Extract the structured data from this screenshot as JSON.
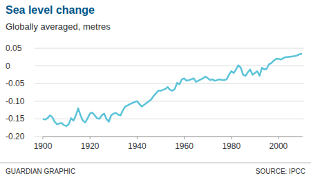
{
  "chart_data": {
    "type": "line",
    "title": "Sea level change",
    "subtitle": "Globally averaged, metres",
    "credit": "GUARDIAN GRAPHIC",
    "source": "SOURCE: IPCC",
    "color": "#5bc3d9",
    "grid": true,
    "x": [
      1900,
      1901,
      1902,
      1903,
      1904,
      1905,
      1906,
      1907,
      1908,
      1909,
      1910,
      1911,
      1912,
      1913,
      1914,
      1915,
      1916,
      1917,
      1918,
      1919,
      1920,
      1921,
      1922,
      1923,
      1924,
      1925,
      1926,
      1927,
      1928,
      1929,
      1930,
      1931,
      1932,
      1933,
      1934,
      1935,
      1936,
      1937,
      1938,
      1939,
      1940,
      1941,
      1942,
      1943,
      1944,
      1945,
      1946,
      1947,
      1948,
      1949,
      1950,
      1951,
      1952,
      1953,
      1954,
      1955,
      1956,
      1957,
      1958,
      1959,
      1960,
      1961,
      1962,
      1963,
      1964,
      1965,
      1966,
      1967,
      1968,
      1969,
      1970,
      1971,
      1972,
      1973,
      1974,
      1975,
      1976,
      1977,
      1978,
      1979,
      1980,
      1981,
      1982,
      1983,
      1984,
      1985,
      1986,
      1987,
      1988,
      1989,
      1990,
      1991,
      1992,
      1993,
      1994,
      1995,
      1996,
      1997,
      1998,
      1999,
      2000,
      2001,
      2002,
      2003,
      2004,
      2005,
      2006,
      2007,
      2008,
      2009,
      2010
    ],
    "values": [
      -0.15,
      -0.152,
      -0.148,
      -0.14,
      -0.145,
      -0.158,
      -0.165,
      -0.163,
      -0.162,
      -0.168,
      -0.17,
      -0.165,
      -0.148,
      -0.155,
      -0.14,
      -0.12,
      -0.14,
      -0.155,
      -0.16,
      -0.148,
      -0.135,
      -0.132,
      -0.14,
      -0.148,
      -0.15,
      -0.14,
      -0.135,
      -0.15,
      -0.158,
      -0.14,
      -0.135,
      -0.133,
      -0.138,
      -0.14,
      -0.125,
      -0.115,
      -0.112,
      -0.108,
      -0.105,
      -0.102,
      -0.1,
      -0.108,
      -0.115,
      -0.11,
      -0.105,
      -0.1,
      -0.095,
      -0.085,
      -0.078,
      -0.07,
      -0.07,
      -0.068,
      -0.065,
      -0.06,
      -0.068,
      -0.07,
      -0.065,
      -0.048,
      -0.052,
      -0.038,
      -0.035,
      -0.042,
      -0.04,
      -0.038,
      -0.035,
      -0.045,
      -0.042,
      -0.038,
      -0.035,
      -0.03,
      -0.035,
      -0.04,
      -0.038,
      -0.042,
      -0.04,
      -0.038,
      -0.04,
      -0.04,
      -0.038,
      -0.025,
      -0.015,
      -0.02,
      -0.01,
      0.002,
      -0.005,
      -0.025,
      -0.028,
      -0.018,
      -0.01,
      -0.025,
      -0.02,
      -0.015,
      -0.028,
      -0.005,
      -0.01,
      -0.008,
      0.005,
      0.008,
      0.015,
      0.02,
      0.02,
      0.018,
      0.022,
      0.025,
      0.025,
      0.026,
      0.027,
      0.028,
      0.03,
      0.033,
      0.035
    ],
    "xlim": [
      1900,
      2010
    ],
    "xticks": [
      1900,
      1920,
      1940,
      1960,
      1980,
      2000
    ],
    "ylim": [
      -0.2,
      0.05
    ],
    "yticks": [
      0.05,
      0,
      -0.05,
      {
        "value": -0.1,
        "label": "-0.10"
      },
      -0.15,
      {
        "value": -0.2,
        "label": "-0.20"
      }
    ]
  }
}
